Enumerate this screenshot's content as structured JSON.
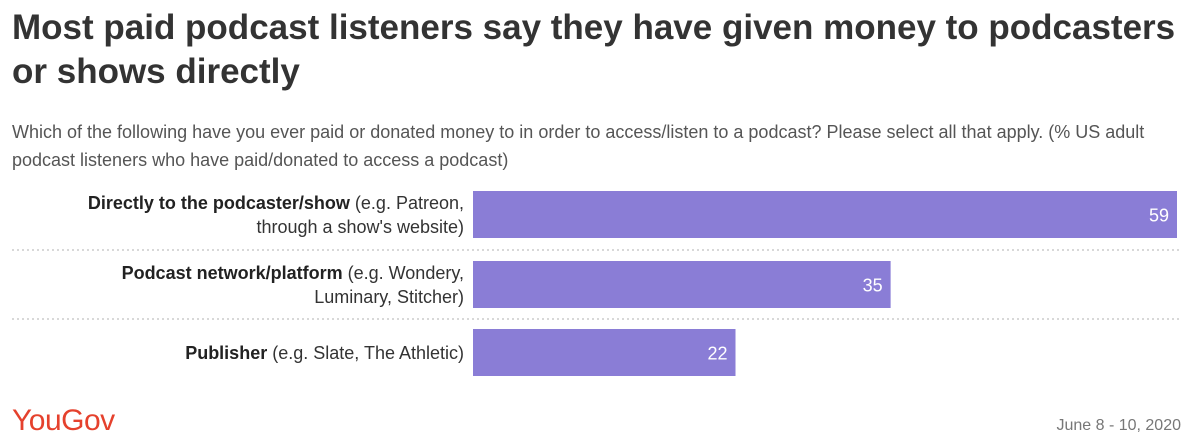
{
  "header": {
    "title": "Most paid podcast listeners say they have given money to podcasters or shows directly",
    "subtitle": "Which of the following have you ever paid or donated money to in order to access/listen to a podcast? Please select all that apply. (% US adult podcast listeners who have paid/donated to access a podcast)"
  },
  "chart_data": {
    "type": "bar",
    "orientation": "horizontal",
    "categories": [
      "Directly to the podcaster/show (e.g. Patreon, through a show's website)",
      "Podcast network/platform (e.g. Wondery, Luminary, Stitcher)",
      "Publisher (e.g. Slate, The Athletic)"
    ],
    "category_labels": [
      {
        "bold": "Directly to the podcaster/show",
        "line1": " (e.g. Patreon,",
        "line2": "through a show's website)"
      },
      {
        "bold": "Podcast network/platform",
        "line1": " (e.g. Wondery,",
        "line2": "Luminary, Stitcher)"
      },
      {
        "bold": "Publisher",
        "line1": " (e.g. Slate, The Athletic)",
        "line2": ""
      }
    ],
    "values": [
      59,
      35,
      22
    ],
    "xlim": [
      0,
      59
    ],
    "bar_color": "#8a7dd6",
    "label_color": "#ffffff",
    "separator_color": "#cccccc",
    "grid": false
  },
  "footer": {
    "brand": "YouGov",
    "brand_color": "#e5412d",
    "date": "June 8 - 10, 2020"
  }
}
